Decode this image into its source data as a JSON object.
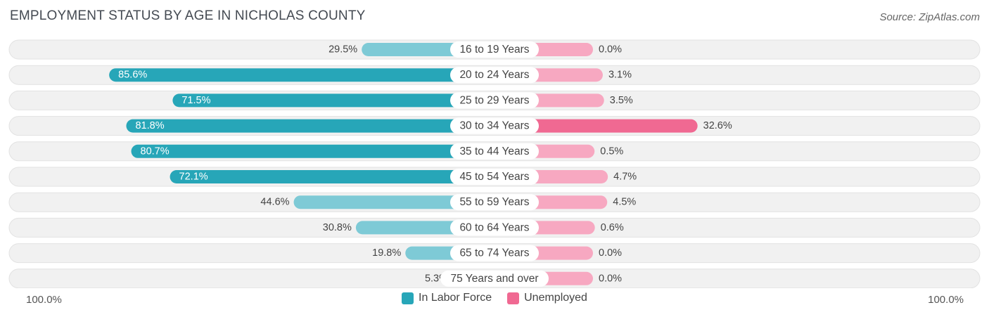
{
  "header": {
    "title": "EMPLOYMENT STATUS BY AGE IN NICHOLAS COUNTY",
    "source": "Source: ZipAtlas.com"
  },
  "colors": {
    "labor_dark": "#27a6b8",
    "labor_light": "#7ecad6",
    "unemp_dark": "#f06992",
    "unemp_light": "#f7a8c1",
    "track": "#eeeeee"
  },
  "chart_data": {
    "type": "bar",
    "orientation": "horizontal-diverging",
    "title": "EMPLOYMENT STATUS BY AGE IN NICHOLAS COUNTY",
    "categories": [
      "16 to 19 Years",
      "20 to 24 Years",
      "25 to 29 Years",
      "30 to 34 Years",
      "35 to 44 Years",
      "45 to 54 Years",
      "55 to 59 Years",
      "60 to 64 Years",
      "65 to 74 Years",
      "75 Years and over"
    ],
    "series": [
      {
        "name": "In Labor Force",
        "values": [
          29.5,
          85.6,
          71.5,
          81.8,
          80.7,
          72.1,
          44.6,
          30.8,
          19.8,
          5.3
        ],
        "labels": [
          "29.5%",
          "85.6%",
          "71.5%",
          "81.8%",
          "80.7%",
          "72.1%",
          "44.6%",
          "30.8%",
          "19.8%",
          "5.3%"
        ]
      },
      {
        "name": "Unemployed",
        "values": [
          0.0,
          3.1,
          3.5,
          32.6,
          0.5,
          4.7,
          4.5,
          0.6,
          0.0,
          0.0
        ],
        "labels": [
          "0.0%",
          "3.1%",
          "3.5%",
          "32.6%",
          "0.5%",
          "4.7%",
          "4.5%",
          "0.6%",
          "0.0%",
          "0.0%"
        ]
      }
    ],
    "xlim": [
      -100,
      100
    ],
    "axis_left_label": "100.0%",
    "axis_right_label": "100.0%",
    "legend": [
      "In Labor Force",
      "Unemployed"
    ],
    "legend_position": "bottom-center"
  }
}
